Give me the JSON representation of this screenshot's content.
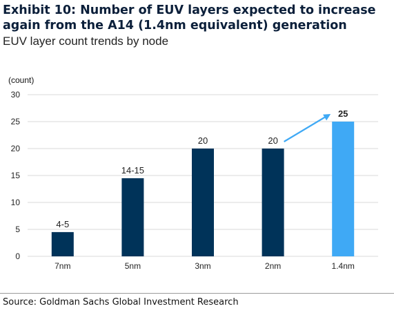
{
  "title": "Exhibit 10: Number of EUV layers expected to increase again from the A14 (1.4nm equivalent) generation",
  "subtitle": "EUV layer count trends by node",
  "source": "Source: Goldman Sachs Global Investment Research",
  "chart_data": {
    "type": "bar",
    "unit_label": "(count)",
    "categories": [
      "7nm",
      "5nm",
      "3nm",
      "2nm",
      "1.4nm"
    ],
    "values": [
      4.5,
      14.5,
      20,
      20,
      25
    ],
    "data_labels": [
      "4-5",
      "14-15",
      "20",
      "20",
      "25"
    ],
    "ylim": [
      0,
      30
    ],
    "yticks": [
      0,
      5,
      10,
      15,
      20,
      25,
      30
    ],
    "grid": true,
    "legend": "none",
    "colors": {
      "bar": "#003359",
      "highlight": "#3FA9F5",
      "arrow": "#3FA9F5",
      "grid": "#d9d9d9"
    },
    "highlight_index": 4,
    "arrow": {
      "from_category": "2nm",
      "to_category": "1.4nm"
    }
  }
}
